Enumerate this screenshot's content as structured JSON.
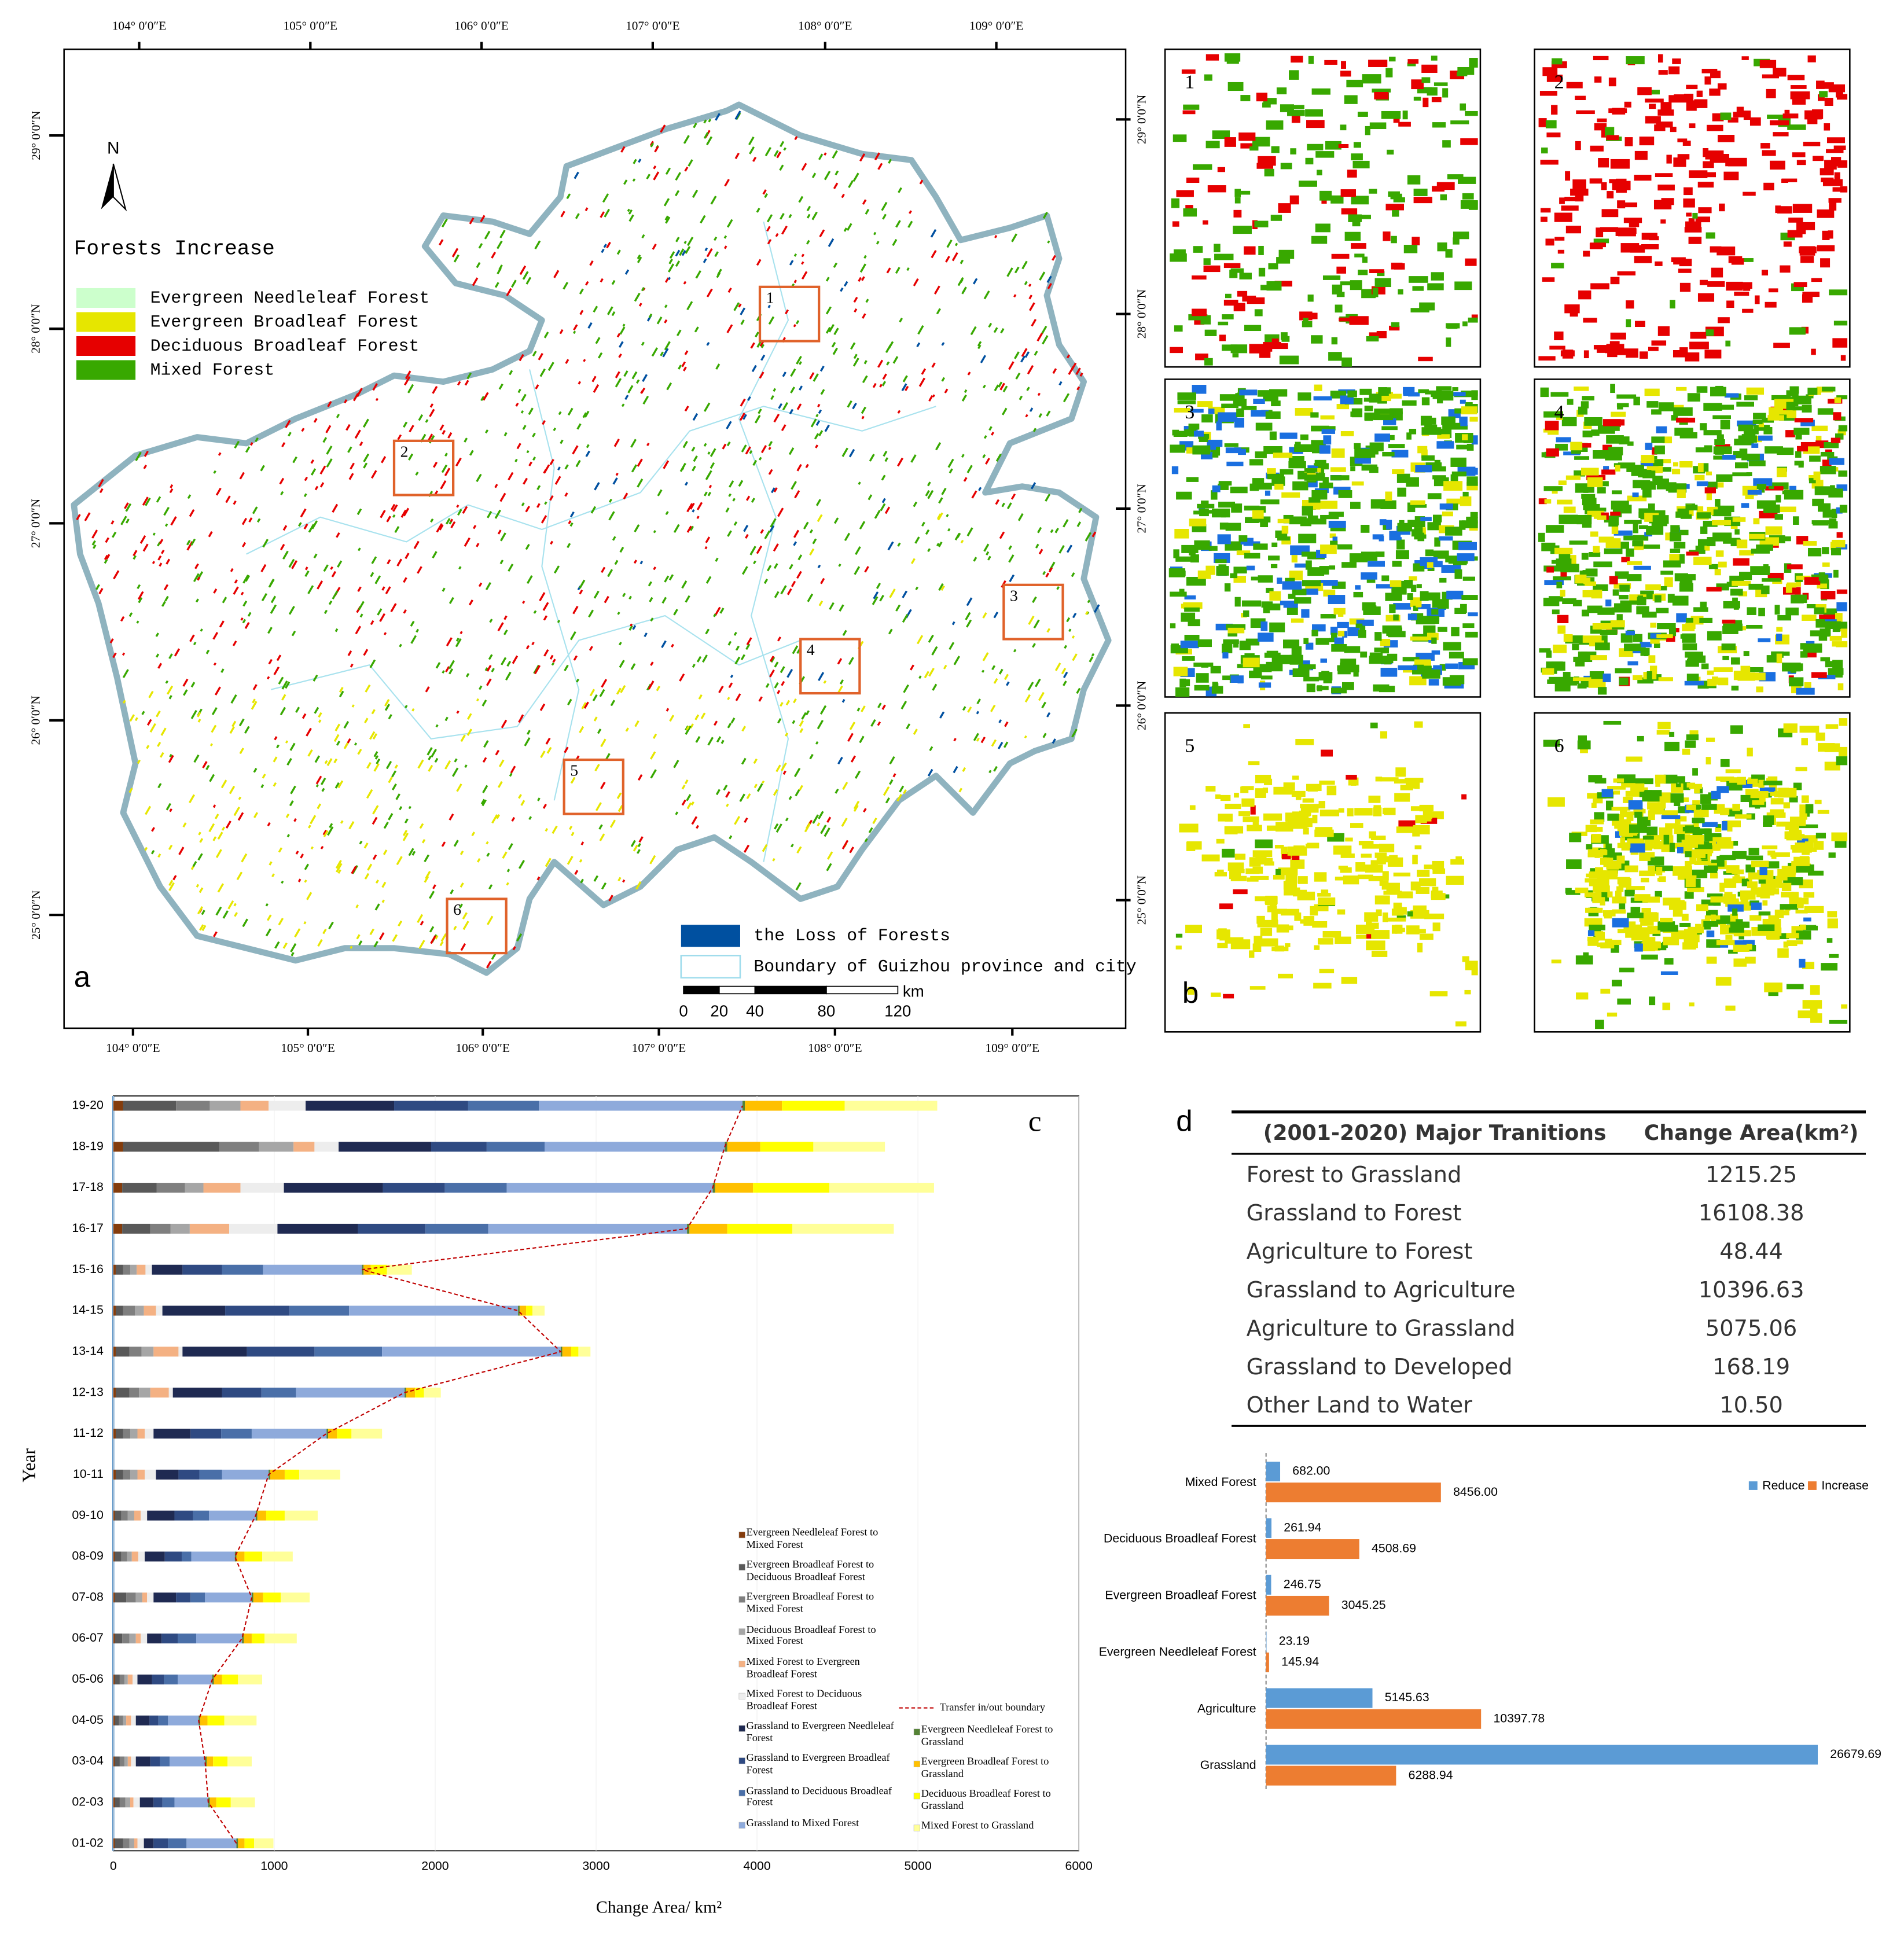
{
  "panel_labels": {
    "a": "a",
    "b": "b",
    "c": "c",
    "d": "d"
  },
  "map": {
    "north": "N",
    "legend_title": "Forests Increase",
    "legend": [
      {
        "name": "Evergreen Needleleaf Forest",
        "color": "#ccffcc"
      },
      {
        "name": "Evergreen Broadleaf Forest",
        "color": "#e6e600"
      },
      {
        "name": "Deciduous Broadleaf Forest",
        "color": "#e60000"
      },
      {
        "name": "Mixed Forest",
        "color": "#38a800"
      }
    ],
    "loss_label": "the Loss of Forests",
    "loss_color": "#0050a0",
    "boundary_label": "Boundary of Guizhou province and city",
    "longitudes": [
      "104° 0′0″E",
      "105° 0′0″E",
      "106° 0′0″E",
      "107° 0′0″E",
      "108° 0′0″E",
      "109° 0′0″E"
    ],
    "latitudes": [
      "29° 0′0″N",
      "28° 0′0″N",
      "27° 0′0″N",
      "26° 0′0″N",
      "25° 0′0″N"
    ],
    "scale_bar": {
      "unit": "km",
      "ticks": [
        0,
        20,
        40,
        80,
        120
      ]
    },
    "insets": [
      "1",
      "2",
      "3",
      "4",
      "5",
      "6"
    ]
  },
  "chart_data": [
    {
      "type": "stacked_bar",
      "orientation": "horizontal",
      "x_label": "Change Area/ km²",
      "y_label": "Year",
      "xlim": [
        0,
        6000
      ],
      "xticks": [
        0,
        1000,
        2000,
        3000,
        4000,
        5000,
        6000
      ],
      "categories": [
        "01-02",
        "02-03",
        "03-04",
        "04-05",
        "05-06",
        "06-07",
        "07-08",
        "08-09",
        "09-10",
        "10-11",
        "11-12",
        "12-13",
        "13-14",
        "14-15",
        "15-16",
        "16-17",
        "17-18",
        "18-19",
        "19-20"
      ],
      "boundary_label": "Transfer in/out boundary",
      "boundary_color": "#c00000",
      "series": [
        {
          "name": "Evergreen Needleleaf Forest to Mixed Forest",
          "color": "#843c0c",
          "values": [
            10,
            10,
            10,
            10,
            10,
            10,
            10,
            10,
            10,
            15,
            15,
            15,
            15,
            15,
            15,
            55,
            55,
            60,
            60
          ]
        },
        {
          "name": "Evergreen Broadleaf Forest to Deciduous Broadleaf Forest",
          "color": "#595959",
          "values": [
            50,
            30,
            30,
            25,
            30,
            45,
            70,
            40,
            40,
            45,
            45,
            85,
            85,
            45,
            45,
            175,
            215,
            600,
            330
          ]
        },
        {
          "name": "Evergreen Broadleaf Forest to Mixed Forest",
          "color": "#7f7f7f",
          "values": [
            40,
            35,
            30,
            25,
            30,
            45,
            60,
            35,
            40,
            45,
            45,
            60,
            75,
            75,
            45,
            125,
            175,
            245,
            210
          ]
        },
        {
          "name": "Deciduous Broadleaf Forest to Mixed Forest",
          "color": "#a6a6a6",
          "values": [
            30,
            30,
            20,
            20,
            20,
            40,
            40,
            30,
            40,
            45,
            45,
            70,
            75,
            55,
            40,
            120,
            115,
            215,
            190
          ]
        },
        {
          "name": "Mixed Forest to Evergreen Broadleaf Forest",
          "color": "#f4b183",
          "values": [
            20,
            20,
            20,
            30,
            30,
            30,
            30,
            40,
            40,
            45,
            45,
            115,
            155,
            75,
            55,
            245,
            230,
            130,
            175
          ]
        },
        {
          "name": "Mixed Forest to Deciduous Broadleaf Forest",
          "color": "#ededed",
          "values": [
            40,
            40,
            30,
            30,
            30,
            40,
            40,
            40,
            40,
            70,
            55,
            25,
            25,
            40,
            40,
            300,
            270,
            150,
            230
          ]
        },
        {
          "name": "Grassland to Evergreen Needleleaf Forest",
          "color": "#1f2a52",
          "values": [
            60,
            85,
            90,
            85,
            90,
            90,
            140,
            125,
            170,
            140,
            230,
            305,
            400,
            390,
            190,
            500,
            615,
            575,
            550
          ]
        },
        {
          "name": "Grassland to Evergreen Broadleaf Forest",
          "color": "#2f4a82",
          "values": [
            90,
            55,
            60,
            55,
            75,
            100,
            90,
            105,
            115,
            130,
            190,
            245,
            420,
            400,
            245,
            420,
            385,
            345,
            460
          ]
        },
        {
          "name": "Grassland to Deciduous Broadleaf Forest",
          "color": "#4a6fa8",
          "values": [
            115,
            75,
            60,
            60,
            85,
            115,
            90,
            60,
            100,
            140,
            190,
            215,
            420,
            370,
            255,
            390,
            385,
            360,
            440
          ]
        },
        {
          "name": "Grassland to Mixed Forest",
          "color": "#8eaadb",
          "values": [
            310,
            210,
            220,
            190,
            215,
            285,
            290,
            270,
            290,
            290,
            465,
            675,
            1110,
            1050,
            615,
            1235,
            1280,
            1120,
            1265
          ]
        },
        {
          "name": "Evergreen Needleleaf Forest to Grassland",
          "color": "#548235",
          "values": [
            10,
            10,
            10,
            10,
            10,
            10,
            10,
            10,
            10,
            10,
            10,
            10,
            10,
            10,
            10,
            15,
            15,
            15,
            15
          ]
        },
        {
          "name": "Evergreen Broadleaf Forest to Grassland",
          "color": "#ffc000",
          "values": [
            40,
            40,
            40,
            45,
            50,
            50,
            60,
            50,
            55,
            90,
            55,
            55,
            55,
            40,
            45,
            235,
            235,
            205,
            230
          ]
        },
        {
          "name": "Deciduous Broadleaf Forest to Grassland",
          "color": "#ffff00",
          "values": [
            60,
            90,
            90,
            105,
            100,
            80,
            110,
            110,
            115,
            90,
            90,
            55,
            45,
            40,
            100,
            405,
            475,
            330,
            390
          ]
        },
        {
          "name": "Mixed Forest to Grassland",
          "color": "#ffff99",
          "values": [
            120,
            150,
            150,
            200,
            150,
            200,
            180,
            190,
            205,
            255,
            190,
            105,
            75,
            75,
            155,
            630,
            650,
            445,
            575
          ]
        }
      ]
    },
    {
      "type": "bar",
      "orientation": "horizontal",
      "categories": [
        "Mixed Forest",
        "Deciduous Broadleaf Forest",
        "Evergreen Broadleaf Forest",
        "Evergreen Needleleaf Forest",
        "Agriculture",
        "Grassland"
      ],
      "legend": "top-right",
      "series": [
        {
          "name": "Reduce",
          "color": "#5b9bd5",
          "values": [
            682,
            261.94,
            246.75,
            23.19,
            5145.63,
            26679.69
          ],
          "value_labels": [
            "682.00",
            "261.94",
            "246.75",
            "23.19",
            "5145.63",
            "26679.69"
          ]
        },
        {
          "name": "Increase",
          "color": "#ed7d31",
          "values": [
            8456,
            4508.69,
            3045.25,
            145.94,
            10397.78,
            6288.94
          ],
          "value_labels": [
            "8456.00",
            "4508.69",
            "3045.25",
            "145.94",
            "10397.78",
            "6288.94"
          ]
        }
      ]
    }
  ],
  "table": {
    "header": [
      "(2001-2020)  Major Tranitions",
      "Change Area(km²)"
    ],
    "rows": [
      [
        "Forest to Grassland",
        "1215.25"
      ],
      [
        "Grassland to Forest",
        "16108.38"
      ],
      [
        "Agriculture to Forest",
        "48.44"
      ],
      [
        "Grassland to Agriculture",
        "10396.63"
      ],
      [
        "Agriculture to Grassland",
        "5075.06"
      ],
      [
        "Grassland to Developed",
        "168.19"
      ],
      [
        "Other Land to Water",
        "10.50"
      ]
    ]
  }
}
